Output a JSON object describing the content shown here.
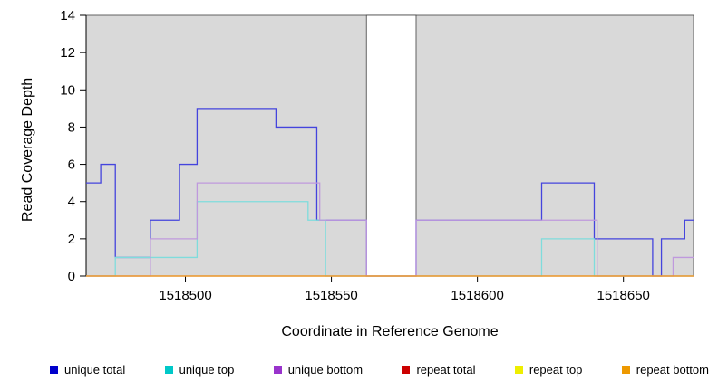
{
  "figure": {
    "plot_bg": "#d9d9d9",
    "gap_fill": "#ffffff",
    "band_border": "#3f3f3f",
    "axis_color": "#000000"
  },
  "chart_data": {
    "type": "line",
    "subtype": "step-coverage",
    "title": "",
    "xlabel": "Coordinate in Reference Genome",
    "ylabel": "Read Coverage Depth",
    "xlim": [
      1518466,
      1518674
    ],
    "ylim": [
      0,
      14
    ],
    "x_ticks": [
      1518500,
      1518550,
      1518600,
      1518650
    ],
    "y_ticks": [
      0,
      2,
      4,
      6,
      8,
      10,
      12,
      14
    ],
    "grid": false,
    "legend_position": "bottom",
    "covered_region": {
      "from": 1518466,
      "to": 1518674
    },
    "gap_region": {
      "from": 1518562,
      "to": 1518579
    },
    "series": [
      {
        "name": "unique total",
        "color": "#0000cc",
        "line_color": "#4444dd",
        "segments": [
          [
            1518466,
            1518471,
            5
          ],
          [
            1518471,
            1518476,
            6
          ],
          [
            1518476,
            1518488,
            1
          ],
          [
            1518488,
            1518498,
            3
          ],
          [
            1518498,
            1518504,
            6
          ],
          [
            1518504,
            1518531,
            9
          ],
          [
            1518531,
            1518545,
            8
          ],
          [
            1518545,
            1518562,
            3
          ],
          [
            1518562,
            1518579,
            0
          ],
          [
            1518579,
            1518622,
            3
          ],
          [
            1518622,
            1518640,
            5
          ],
          [
            1518640,
            1518660,
            2
          ],
          [
            1518660,
            1518663,
            0
          ],
          [
            1518663,
            1518671,
            2
          ],
          [
            1518671,
            1518674,
            3
          ]
        ]
      },
      {
        "name": "unique top",
        "color": "#00c8c8",
        "line_color": "#7fdcdc",
        "segments": [
          [
            1518466,
            1518476,
            0
          ],
          [
            1518476,
            1518504,
            1
          ],
          [
            1518504,
            1518542,
            4
          ],
          [
            1518542,
            1518548,
            3
          ],
          [
            1518548,
            1518622,
            0
          ],
          [
            1518622,
            1518640,
            2
          ],
          [
            1518640,
            1518674,
            0
          ]
        ]
      },
      {
        "name": "unique bottom",
        "color": "#9933cc",
        "line_color": "#bf99dd",
        "segments": [
          [
            1518466,
            1518488,
            0
          ],
          [
            1518488,
            1518504,
            2
          ],
          [
            1518504,
            1518546,
            5
          ],
          [
            1518546,
            1518562,
            3
          ],
          [
            1518562,
            1518579,
            0
          ],
          [
            1518579,
            1518641,
            3
          ],
          [
            1518641,
            1518667,
            0
          ],
          [
            1518667,
            1518674,
            1
          ]
        ]
      },
      {
        "name": "repeat total",
        "color": "#cc0000",
        "line_color": "#cc3333",
        "segments": [
          [
            1518466,
            1518674,
            0
          ]
        ]
      },
      {
        "name": "repeat top",
        "color": "#eeee00",
        "line_color": "#eeee33",
        "segments": [
          [
            1518466,
            1518674,
            0
          ]
        ]
      },
      {
        "name": "repeat bottom",
        "color": "#ee9900",
        "line_color": "#ee9933",
        "segments": [
          [
            1518466,
            1518674,
            0
          ]
        ]
      }
    ]
  }
}
